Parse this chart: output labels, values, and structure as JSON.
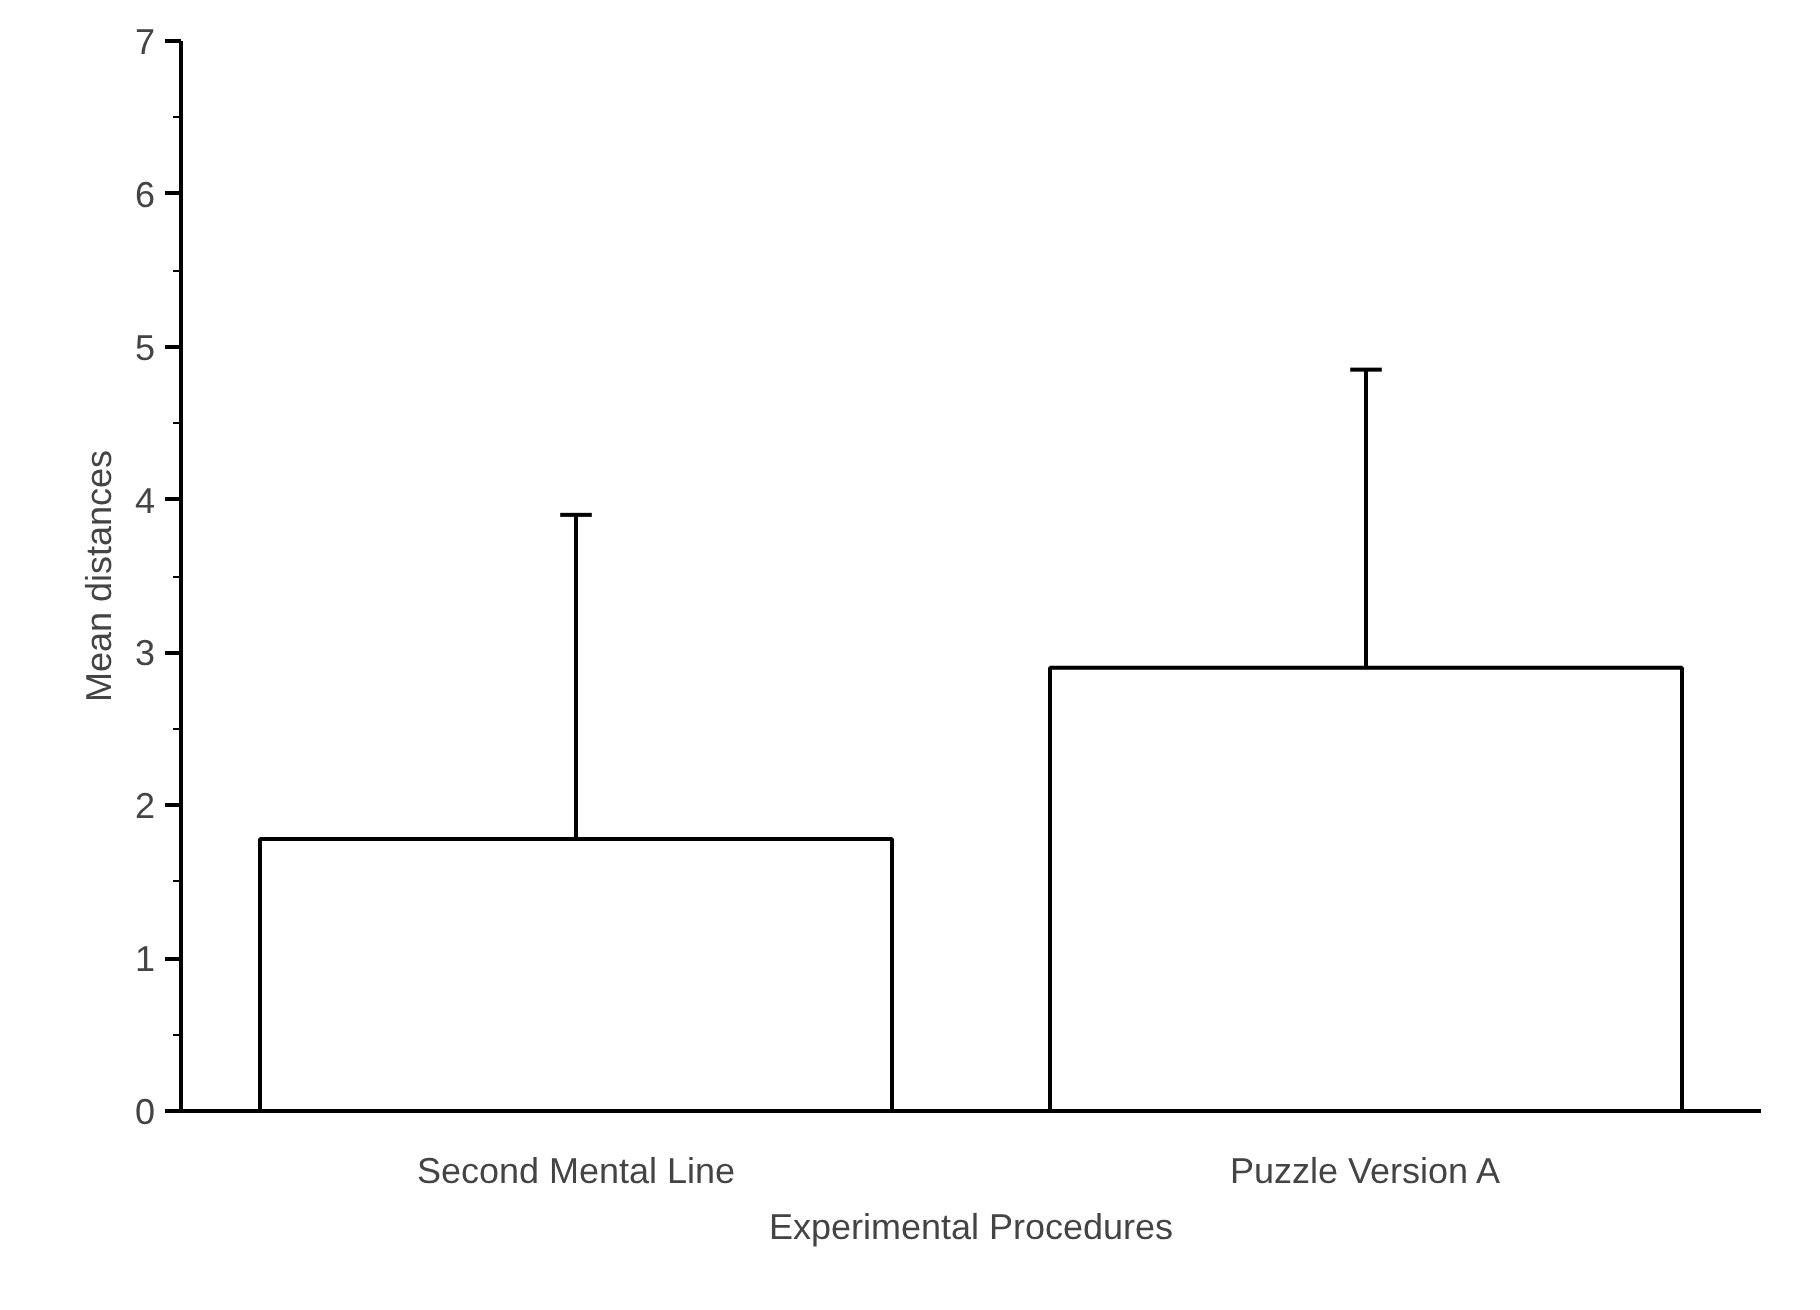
{
  "chart_data": {
    "type": "bar",
    "xlabel": "Experimental Procedures",
    "ylabel": "Mean distances",
    "categories": [
      "Second Mental Line",
      "Puzzle Version A"
    ],
    "values": [
      1.78,
      2.9
    ],
    "errors": [
      [
        1.78,
        3.9
      ],
      [
        2.9,
        4.85
      ]
    ],
    "color": "#ffffff",
    "ylim": [
      0,
      7
    ],
    "yticks": [
      0,
      1,
      2,
      3,
      4,
      5,
      6,
      7
    ],
    "grid": false
  }
}
